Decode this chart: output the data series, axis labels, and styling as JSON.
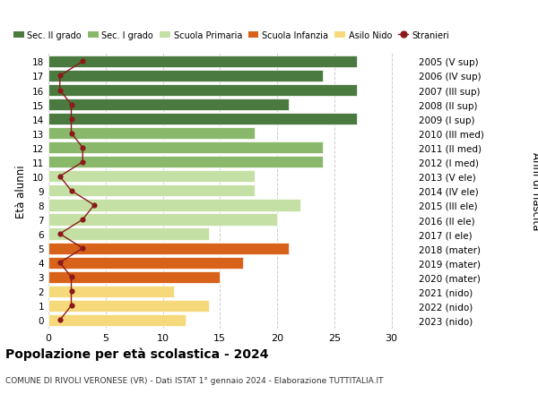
{
  "ages": [
    18,
    17,
    16,
    15,
    14,
    13,
    12,
    11,
    10,
    9,
    8,
    7,
    6,
    5,
    4,
    3,
    2,
    1,
    0
  ],
  "right_labels": [
    "2005 (V sup)",
    "2006 (IV sup)",
    "2007 (III sup)",
    "2008 (II sup)",
    "2009 (I sup)",
    "2010 (III med)",
    "2011 (II med)",
    "2012 (I med)",
    "2013 (V ele)",
    "2014 (IV ele)",
    "2015 (III ele)",
    "2016 (II ele)",
    "2017 (I ele)",
    "2018 (mater)",
    "2019 (mater)",
    "2020 (mater)",
    "2021 (nido)",
    "2022 (nido)",
    "2023 (nido)"
  ],
  "bar_values": [
    27,
    24,
    27,
    21,
    27,
    18,
    24,
    24,
    18,
    18,
    22,
    20,
    14,
    21,
    17,
    15,
    11,
    14,
    12
  ],
  "bar_colors": [
    "#4a7a40",
    "#4a7a40",
    "#4a7a40",
    "#4a7a40",
    "#4a7a40",
    "#8ab86a",
    "#8ab86a",
    "#8ab86a",
    "#c5e0a5",
    "#c5e0a5",
    "#c5e0a5",
    "#c5e0a5",
    "#c5e0a5",
    "#d9621a",
    "#d9621a",
    "#d9621a",
    "#f5d97a",
    "#f5d97a",
    "#f5d97a"
  ],
  "stranieri_values": [
    3,
    1,
    1,
    2,
    2,
    2,
    3,
    3,
    1,
    2,
    4,
    3,
    1,
    3,
    1,
    2,
    2,
    2,
    1
  ],
  "stranieri_color": "#8b1a1a",
  "legend_labels": [
    "Sec. II grado",
    "Sec. I grado",
    "Scuola Primaria",
    "Scuola Infanzia",
    "Asilo Nido",
    "Stranieri"
  ],
  "legend_colors": [
    "#4a7a40",
    "#8ab86a",
    "#c5e0a5",
    "#d9621a",
    "#f5d97a",
    "#8b1a1a"
  ],
  "ylabel_left": "Età alunni",
  "ylabel_right": "Anni di nascita",
  "xlim": [
    0,
    32
  ],
  "xticks": [
    0,
    5,
    10,
    15,
    20,
    25,
    30
  ],
  "title": "Popolazione per età scolastica - 2024",
  "subtitle": "COMUNE DI RIVOLI VERONESE (VR) - Dati ISTAT 1° gennaio 2024 - Elaborazione TUTTITALIA.IT",
  "bg_color": "#ffffff",
  "grid_color": "#cccccc"
}
